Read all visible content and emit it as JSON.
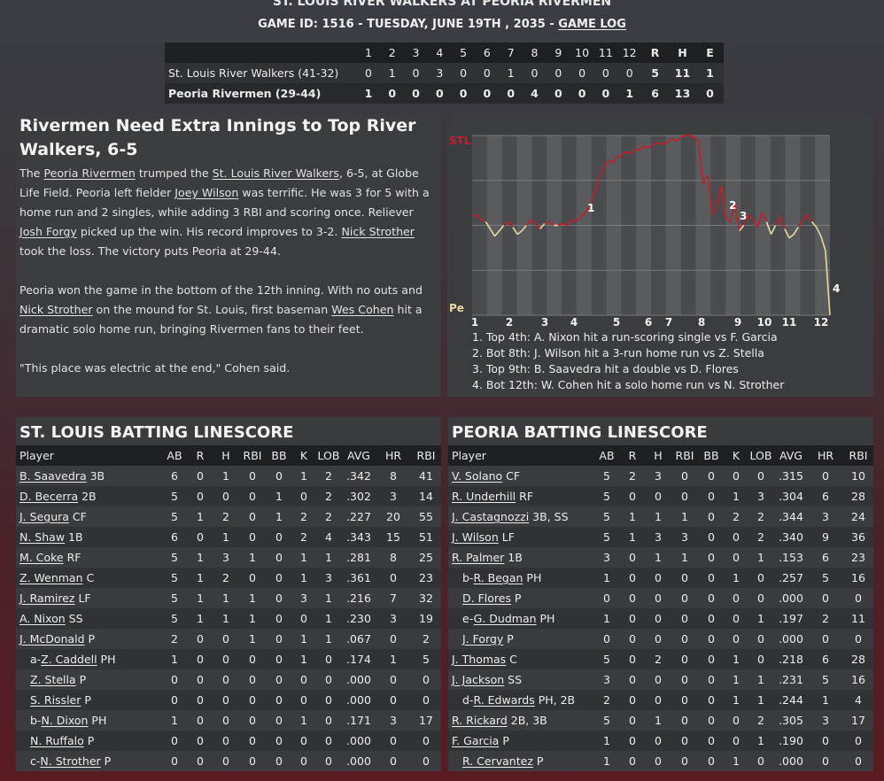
{
  "header": {
    "title": "ST. LOUIS RIVER WALKERS AT PEORIA RIVERMEN",
    "subtitle": "GAME ID: 1516 - TUESDAY, JUNE 19TH , 2035 - ",
    "game_log_link": "GAME LOG"
  },
  "linescore": {
    "columns": [
      "1",
      "2",
      "3",
      "4",
      "5",
      "6",
      "7",
      "8",
      "9",
      "10",
      "11",
      "12",
      "R",
      "H",
      "E"
    ],
    "teams": [
      {
        "name": "St. Louis River Walkers (41-32)",
        "innings": [
          "0",
          "1",
          "0",
          "3",
          "0",
          "0",
          "1",
          "0",
          "0",
          "0",
          "0",
          "0"
        ],
        "r": "5",
        "h": "11",
        "e": "1"
      },
      {
        "name": "Peoria Rivermen (29-44)",
        "innings": [
          "1",
          "0",
          "0",
          "0",
          "0",
          "0",
          "0",
          "4",
          "0",
          "0",
          "0",
          "1"
        ],
        "r": "6",
        "h": "13",
        "e": "0"
      }
    ]
  },
  "article": {
    "headline": "Rivermen Need Extra Innings to Top River Walkers, 6-5",
    "p1": [
      {
        "t": "The "
      },
      {
        "t": "Peoria Rivermen",
        "link": true
      },
      {
        "t": " trumped the "
      },
      {
        "t": "St. Louis River Walkers",
        "link": true
      },
      {
        "t": ", 6-5, at Globe Life Field. Peoria left fielder "
      },
      {
        "t": "Joey Wilson",
        "link": true
      },
      {
        "t": " was terrific. He was 3 for 5 with a home run and 2 singles, while adding 3 RBI and scoring once. Reliever "
      },
      {
        "t": "Josh Forgy",
        "link": true
      },
      {
        "t": " picked up the win. His record improves to 3-2. "
      },
      {
        "t": "Nick Strother",
        "link": true
      },
      {
        "t": " took the loss. The victory puts Peoria at 29-44."
      }
    ],
    "p2": [
      {
        "t": "Peoria won the game in the bottom of the 12th inning. With no outs and "
      },
      {
        "t": "Nick Strother",
        "link": true
      },
      {
        "t": " on the mound for St. Louis, first baseman "
      },
      {
        "t": "Wes Cohen",
        "link": true
      },
      {
        "t": " hit a dramatic solo home run, bringing Rivermen fans to their feet."
      }
    ],
    "p3": "\"This place was electric at the end,\" Cohen said."
  },
  "chart_data": {
    "type": "line",
    "top_label": "STL",
    "bottom_label": "Pe",
    "x_ticks": [
      "1",
      "2",
      "3",
      "4",
      "5",
      "6",
      "7",
      "8",
      "9",
      "10",
      "11",
      "12"
    ],
    "series": [
      {
        "values": [
          0.55,
          0.56,
          0.53,
          0.52,
          0.48,
          0.44,
          0.47,
          0.5,
          0.52,
          0.49,
          0.45,
          0.47,
          0.5,
          0.53,
          0.51,
          0.48,
          0.51,
          0.52,
          0.5,
          0.5,
          0.51,
          0.5,
          0.53,
          0.52,
          0.55,
          0.57,
          0.61,
          0.68,
          0.76,
          0.82,
          0.86,
          0.85,
          0.88,
          0.89,
          0.91,
          0.9,
          0.92,
          0.92,
          0.94,
          0.93,
          0.95,
          0.96,
          0.95,
          0.96,
          0.98,
          0.97,
          0.99,
          1.0,
          1.0,
          0.99,
          0.97,
          0.73,
          0.78,
          0.56,
          0.6,
          0.72,
          0.54,
          0.52,
          0.62,
          0.47,
          0.5,
          0.56,
          0.53,
          0.49,
          0.57,
          0.52,
          0.45,
          0.5,
          0.55,
          0.48,
          0.43,
          0.45,
          0.49,
          0.53,
          0.56,
          0.52,
          0.49,
          0.44,
          0.36,
          0.0
        ]
      }
    ],
    "annotations": [
      "1",
      "2",
      "3",
      "4"
    ],
    "notes": [
      "1. Top 4th: A. Nixon hit a run-scoring single vs F. Garcia",
      "2. Bot 8th: J. Wilson hit a 3-run home run vs Z. Stella",
      "3. Top 9th: B. Saavedra hit a double vs D. Flores",
      "4. Bot 12th: W. Cohen hit a solo home run vs N. Strother"
    ],
    "colors": {
      "leading_stl": "#c41e2a",
      "leading_peo": "#e8d9a0",
      "grid": "#7a7a7a"
    }
  },
  "batting": {
    "columns": [
      "Player",
      "AB",
      "R",
      "H",
      "RBI",
      "BB",
      "K",
      "LOB",
      "AVG",
      "HR",
      "RBI"
    ],
    "stl": {
      "title": "ST. LOUIS BATTING LINESCORE",
      "rows": [
        {
          "prefix": "",
          "name": "B. Saavedra",
          "pos": "3B",
          "stats": [
            "6",
            "0",
            "1",
            "0",
            "0",
            "1",
            "2",
            ".342",
            "8",
            "41"
          ]
        },
        {
          "prefix": "",
          "name": "D. Becerra",
          "pos": "2B",
          "stats": [
            "5",
            "0",
            "0",
            "0",
            "1",
            "0",
            "2",
            ".302",
            "3",
            "14"
          ]
        },
        {
          "prefix": "",
          "name": "J. Segura",
          "pos": "CF",
          "stats": [
            "5",
            "1",
            "2",
            "0",
            "1",
            "2",
            "2",
            ".227",
            "20",
            "55"
          ]
        },
        {
          "prefix": "",
          "name": "N. Shaw",
          "pos": "1B",
          "stats": [
            "6",
            "0",
            "1",
            "0",
            "0",
            "2",
            "4",
            ".343",
            "15",
            "51"
          ]
        },
        {
          "prefix": "",
          "name": "M. Coke",
          "pos": "RF",
          "stats": [
            "5",
            "1",
            "3",
            "1",
            "0",
            "1",
            "1",
            ".281",
            "8",
            "25"
          ]
        },
        {
          "prefix": "",
          "name": "Z. Wenman",
          "pos": "C",
          "stats": [
            "5",
            "1",
            "2",
            "0",
            "0",
            "1",
            "3",
            ".361",
            "0",
            "23"
          ]
        },
        {
          "prefix": "",
          "name": "J. Ramirez",
          "pos": "LF",
          "stats": [
            "5",
            "1",
            "1",
            "1",
            "0",
            "3",
            "1",
            ".216",
            "7",
            "32"
          ]
        },
        {
          "prefix": "",
          "name": "A. Nixon",
          "pos": "SS",
          "stats": [
            "5",
            "1",
            "1",
            "1",
            "0",
            "0",
            "1",
            ".230",
            "3",
            "19"
          ]
        },
        {
          "prefix": "",
          "name": "J. McDonald",
          "pos": "P",
          "stats": [
            "2",
            "0",
            "0",
            "1",
            "0",
            "1",
            "1",
            ".067",
            "0",
            "2"
          ]
        },
        {
          "prefix": "a-",
          "name": "Z. Caddell",
          "pos": "PH",
          "stats": [
            "1",
            "0",
            "0",
            "0",
            "0",
            "1",
            "0",
            ".174",
            "1",
            "5"
          ]
        },
        {
          "prefix": "",
          "name": "Z. Stella",
          "pos": "P",
          "stats": [
            "0",
            "0",
            "0",
            "0",
            "0",
            "0",
            "0",
            ".000",
            "0",
            "0"
          ]
        },
        {
          "prefix": "",
          "name": "S. Rissler",
          "pos": "P",
          "stats": [
            "0",
            "0",
            "0",
            "0",
            "0",
            "0",
            "0",
            ".000",
            "0",
            "0"
          ]
        },
        {
          "prefix": "b-",
          "name": "N. Dixon",
          "pos": "PH",
          "stats": [
            "1",
            "0",
            "0",
            "0",
            "0",
            "1",
            "0",
            ".171",
            "3",
            "17"
          ]
        },
        {
          "prefix": "",
          "name": "N. Ruffalo",
          "pos": "P",
          "stats": [
            "0",
            "0",
            "0",
            "0",
            "0",
            "0",
            "0",
            ".000",
            "0",
            "0"
          ]
        },
        {
          "prefix": "c-",
          "name": "N. Strother",
          "pos": "P",
          "stats": [
            "0",
            "0",
            "0",
            "0",
            "0",
            "0",
            "0",
            ".000",
            "0",
            "0"
          ]
        }
      ]
    },
    "peo": {
      "title": "PEORIA BATTING LINESCORE",
      "rows": [
        {
          "prefix": "",
          "name": "V. Solano",
          "pos": "CF",
          "stats": [
            "5",
            "2",
            "3",
            "0",
            "0",
            "0",
            "0",
            ".315",
            "0",
            "10"
          ]
        },
        {
          "prefix": "",
          "name": "R. Underhill",
          "pos": "RF",
          "stats": [
            "5",
            "0",
            "0",
            "0",
            "0",
            "1",
            "3",
            ".304",
            "6",
            "28"
          ]
        },
        {
          "prefix": "",
          "name": "J. Castagnozzi",
          "pos": "3B, SS",
          "stats": [
            "5",
            "1",
            "1",
            "1",
            "0",
            "2",
            "2",
            ".344",
            "3",
            "24"
          ]
        },
        {
          "prefix": "",
          "name": "J. Wilson",
          "pos": "LF",
          "stats": [
            "5",
            "1",
            "3",
            "3",
            "0",
            "0",
            "2",
            ".340",
            "9",
            "36"
          ]
        },
        {
          "prefix": "",
          "name": "R. Palmer",
          "pos": "1B",
          "stats": [
            "3",
            "0",
            "1",
            "1",
            "0",
            "0",
            "1",
            ".153",
            "6",
            "23"
          ]
        },
        {
          "prefix": "b-",
          "name": "R. Began",
          "pos": "PH",
          "stats": [
            "1",
            "0",
            "0",
            "0",
            "0",
            "1",
            "0",
            ".257",
            "5",
            "16"
          ]
        },
        {
          "prefix": "",
          "name": "D. Flores",
          "pos": "P",
          "stats": [
            "0",
            "0",
            "0",
            "0",
            "0",
            "0",
            "0",
            ".000",
            "0",
            "0"
          ]
        },
        {
          "prefix": "e-",
          "name": "G. Dudman",
          "pos": "PH",
          "stats": [
            "1",
            "0",
            "0",
            "0",
            "0",
            "0",
            "1",
            ".197",
            "2",
            "11"
          ]
        },
        {
          "prefix": "",
          "name": "J. Forgy",
          "pos": "P",
          "stats": [
            "0",
            "0",
            "0",
            "0",
            "0",
            "0",
            "0",
            ".000",
            "0",
            "0"
          ]
        },
        {
          "prefix": "",
          "name": "J. Thomas",
          "pos": "C",
          "stats": [
            "5",
            "0",
            "2",
            "0",
            "0",
            "1",
            "0",
            ".218",
            "6",
            "28"
          ]
        },
        {
          "prefix": "",
          "name": "J. Jackson",
          "pos": "SS",
          "stats": [
            "3",
            "0",
            "0",
            "0",
            "0",
            "1",
            "1",
            ".231",
            "5",
            "16"
          ]
        },
        {
          "prefix": "d-",
          "name": "R. Edwards",
          "pos": "PH, 2B",
          "stats": [
            "2",
            "0",
            "0",
            "0",
            "0",
            "1",
            "1",
            ".244",
            "1",
            "4"
          ]
        },
        {
          "prefix": "",
          "name": "R. Rickard",
          "pos": "2B, 3B",
          "stats": [
            "5",
            "0",
            "1",
            "0",
            "0",
            "0",
            "2",
            ".305",
            "3",
            "17"
          ]
        },
        {
          "prefix": "",
          "name": "F. Garcia",
          "pos": "P",
          "stats": [
            "1",
            "0",
            "0",
            "0",
            "0",
            "0",
            "1",
            ".190",
            "0",
            "0"
          ]
        },
        {
          "prefix": "",
          "name": "R. Cervantez",
          "pos": "P",
          "stats": [
            "1",
            "0",
            "0",
            "0",
            "0",
            "1",
            "0",
            ".000",
            "0",
            "0"
          ]
        }
      ]
    }
  }
}
